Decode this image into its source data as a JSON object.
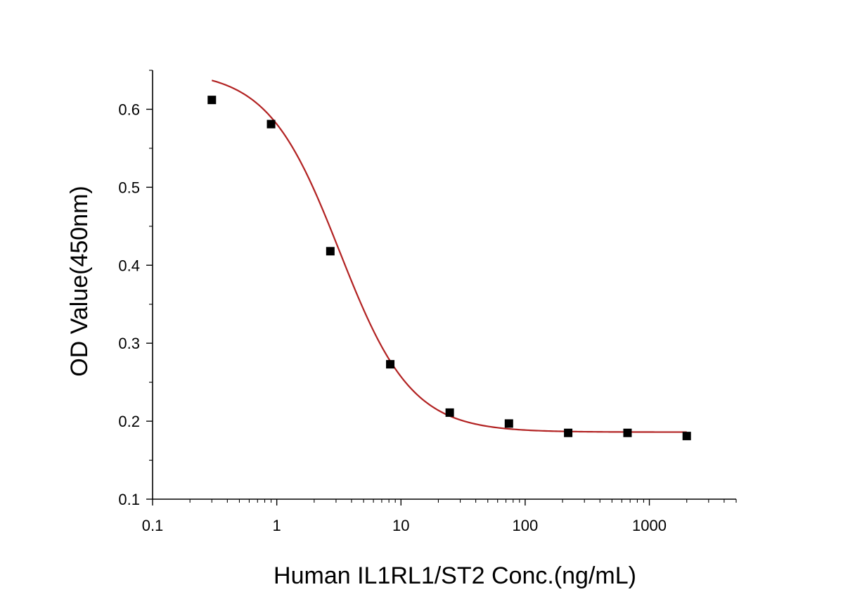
{
  "chart_data": {
    "type": "scatter",
    "title": "",
    "xlabel": "Human IL1RL1/ST2 Conc.(ng/mL)",
    "ylabel": "OD Value(450nm)",
    "x_scale": "log",
    "xlim": [
      0.1,
      5000
    ],
    "ylim": [
      0.1,
      0.65
    ],
    "x_ticks": [
      0.1,
      1,
      10,
      100,
      1000
    ],
    "x_tick_labels": [
      "0.1",
      "1",
      "10",
      "100",
      "1000"
    ],
    "y_ticks": [
      0.1,
      0.2,
      0.3,
      0.4,
      0.5,
      0.6
    ],
    "y_tick_labels": [
      "0.1",
      "0.2",
      "0.3",
      "0.4",
      "0.5",
      "0.6"
    ],
    "grid": false,
    "legend": "none",
    "series": [
      {
        "marker": "square",
        "color": "#000000",
        "x": [
          0.3,
          0.9,
          2.7,
          8.2,
          24.7,
          74,
          222,
          667,
          2000
        ],
        "y": [
          0.612,
          0.581,
          0.418,
          0.273,
          0.211,
          0.197,
          0.185,
          0.185,
          0.181
        ]
      }
    ],
    "fit_curve": {
      "model": "4PL",
      "color": "#b22222",
      "top": 0.65,
      "bottom": 0.186,
      "ec50": 3.2,
      "hill": 1.5
    }
  }
}
